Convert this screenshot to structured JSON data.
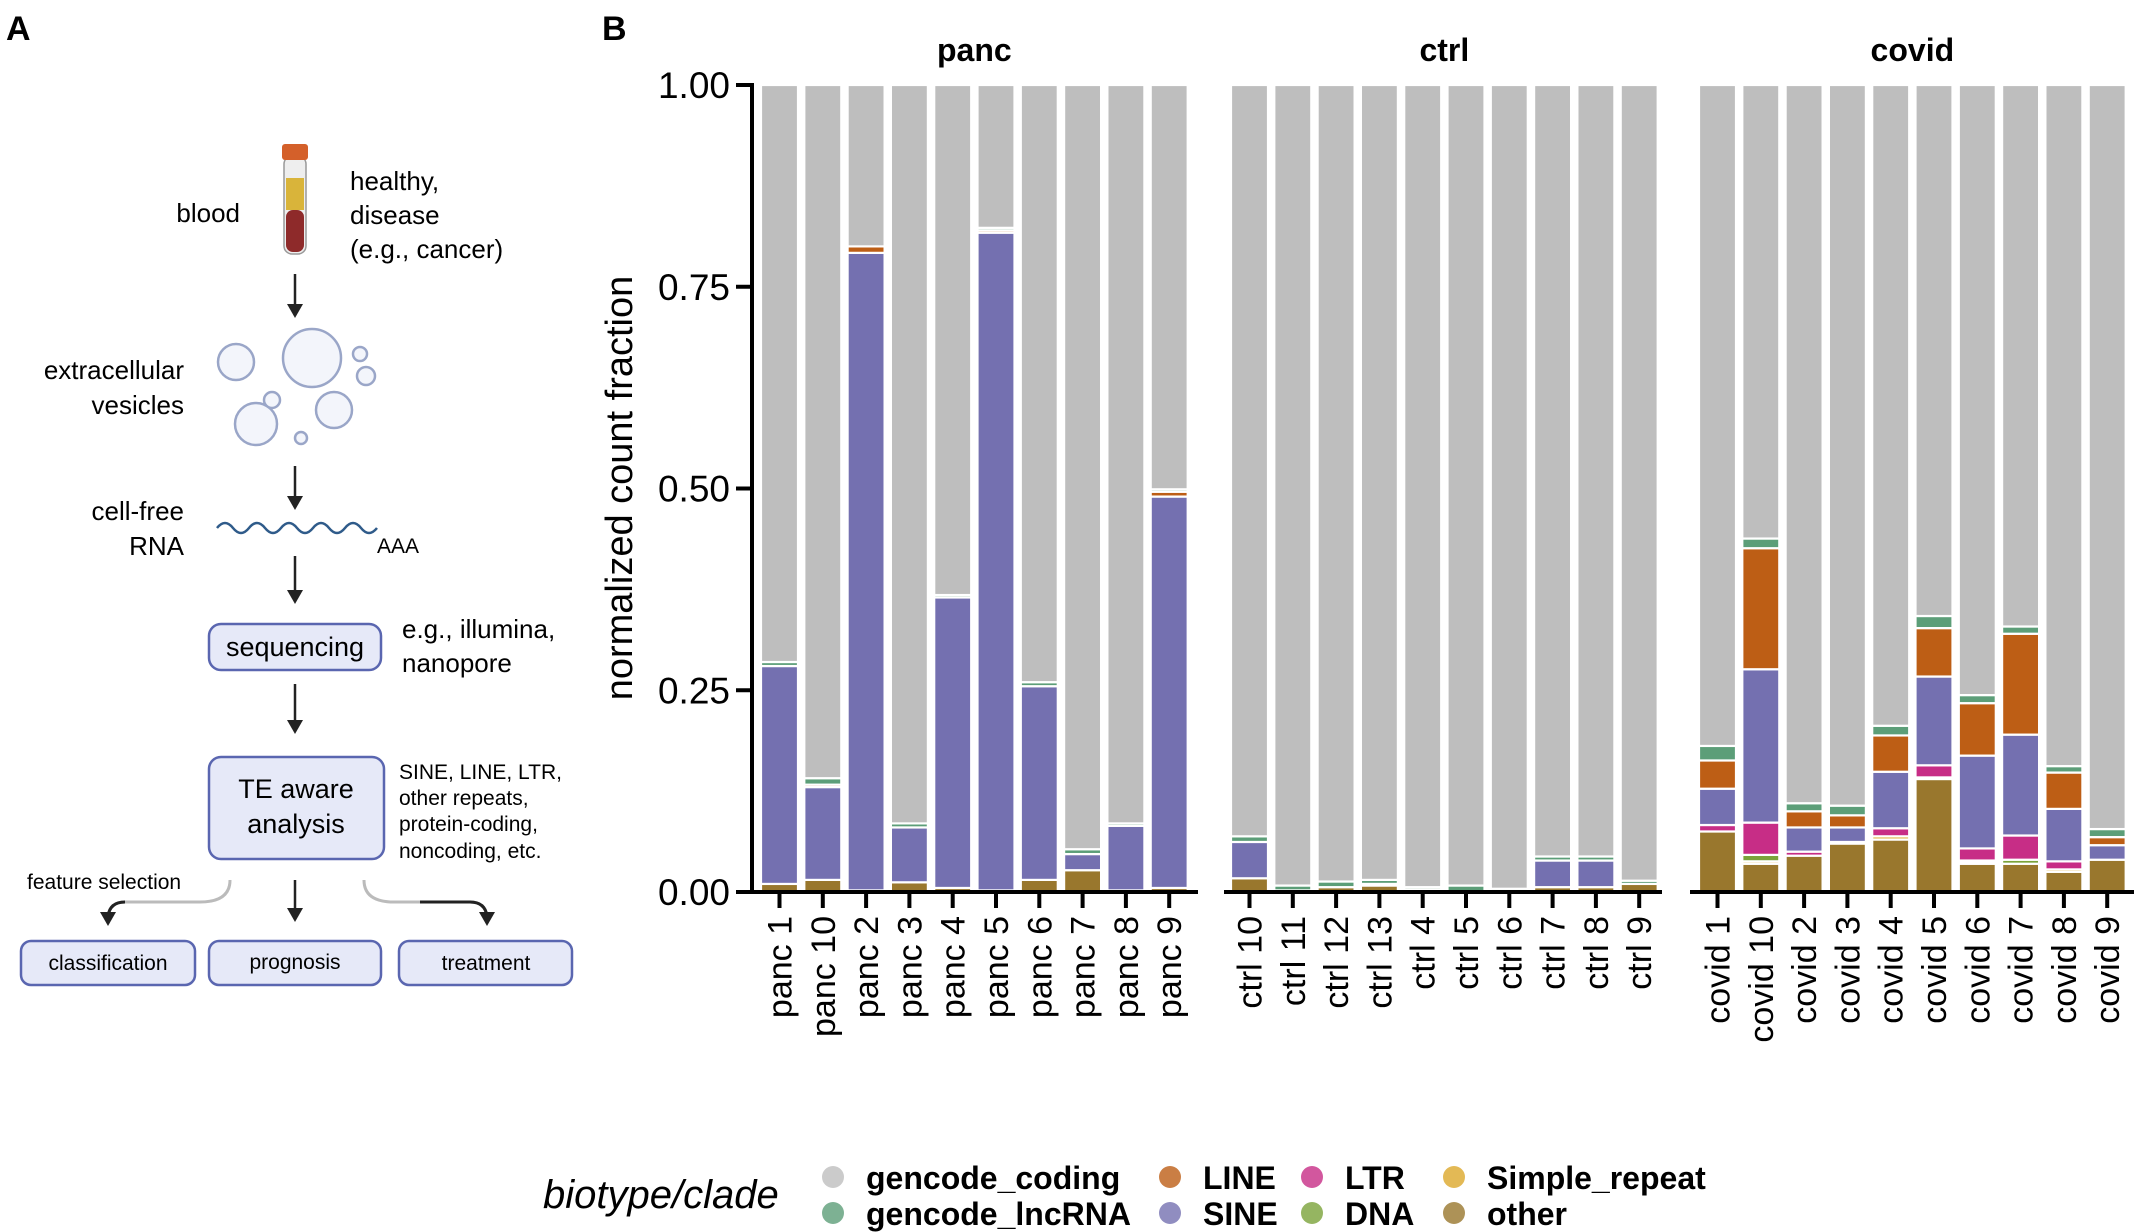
{
  "panel_a": {
    "label": "A",
    "blood": "blood",
    "healthy": [
      "healthy,",
      "disease",
      "(e.g., cancer)"
    ],
    "vesicles": [
      "extracellular",
      "vesicles"
    ],
    "rna": [
      "cell-free",
      "RNA"
    ],
    "polya": "AAA",
    "sequencing": "sequencing",
    "seq_note": [
      "e.g., illumina,",
      "nanopore"
    ],
    "analysis": [
      "TE aware",
      "analysis"
    ],
    "analysis_note": [
      "SINE, LINE, LTR,",
      "other repeats,",
      "protein-coding,",
      "noncoding, etc."
    ],
    "feature_selection": "feature selection",
    "outputs": [
      "classification",
      "prognosis",
      "treatment"
    ]
  },
  "chart_data": {
    "type": "bar",
    "stacked": true,
    "panel_label": "B",
    "ylabel": "normalized count fraction",
    "ylim": [
      0,
      1
    ],
    "yticks": [
      "0.00",
      "0.25",
      "0.50",
      "0.75",
      "1.00"
    ],
    "legend": {
      "title": "biotype/clade",
      "placement": "bottom",
      "entries": [
        "gencode_coding",
        "gencode_lncRNA",
        "LINE",
        "SINE",
        "LTR",
        "DNA",
        "Simple_repeat",
        "other"
      ]
    },
    "colors": {
      "gencode_coding": "#bebebe",
      "gencode_lncRNA": "#5c9e78",
      "LINE": "#bd5e15",
      "SINE": "#7470b0",
      "LTR": "#c72d86",
      "DNA": "#7aa33a",
      "Simple_repeat": "#dca72a",
      "other": "#99772d"
    },
    "stack_order": [
      "other",
      "Simple_repeat",
      "DNA",
      "LTR",
      "SINE",
      "LINE",
      "gencode_lncRNA",
      "gencode_coding"
    ],
    "facets": [
      {
        "name": "panc",
        "categories": [
          "panc 1",
          "panc 10",
          "panc 2",
          "panc 3",
          "panc 4",
          "panc 5",
          "panc 6",
          "panc 7",
          "panc 8",
          "panc 9"
        ],
        "series": [
          {
            "name": "other",
            "values": [
              0.01,
              0.015,
              0.002,
              0.012,
              0.005,
              0.002,
              0.015,
              0.027,
              0.002,
              0.005
            ]
          },
          {
            "name": "Simple_repeat",
            "values": [
              0,
              0,
              0,
              0,
              0,
              0,
              0,
              0,
              0,
              0
            ]
          },
          {
            "name": "DNA",
            "values": [
              0,
              0,
              0,
              0,
              0,
              0,
              0,
              0,
              0,
              0
            ]
          },
          {
            "name": "LTR",
            "values": [
              0,
              0,
              0,
              0,
              0,
              0,
              0,
              0,
              0,
              0
            ]
          },
          {
            "name": "SINE",
            "values": [
              0.27,
              0.115,
              0.79,
              0.068,
              0.36,
              0.815,
              0.24,
              0.02,
              0.08,
              0.485
            ]
          },
          {
            "name": "LINE",
            "values": [
              0,
              0.003,
              0.008,
              0,
              0,
              0.003,
              0,
              0,
              0,
              0.006
            ]
          },
          {
            "name": "gencode_lncRNA",
            "values": [
              0.005,
              0.008,
              0,
              0.005,
              0.003,
              0.003,
              0.005,
              0.006,
              0.003,
              0.003
            ]
          },
          {
            "name": "gencode_coding",
            "values": [
              0.715,
              0.859,
              0.2,
              0.915,
              0.632,
              0.177,
              0.74,
              0.947,
              0.915,
              0.501
            ]
          }
        ]
      },
      {
        "name": "ctrl",
        "categories": [
          "ctrl 10",
          "ctrl 11",
          "ctrl 12",
          "ctrl 13",
          "ctrl 4",
          "ctrl 5",
          "ctrl 6",
          "ctrl 7",
          "ctrl 8",
          "ctrl 9"
        ],
        "series": [
          {
            "name": "other",
            "values": [
              0.017,
              0.002,
              0.006,
              0.008,
              0.003,
              0,
              0,
              0.006,
              0.006,
              0.01
            ]
          },
          {
            "name": "Simple_repeat",
            "values": [
              0,
              0,
              0,
              0,
              0,
              0,
              0,
              0,
              0,
              0
            ]
          },
          {
            "name": "DNA",
            "values": [
              0,
              0,
              0,
              0,
              0,
              0,
              0,
              0,
              0,
              0
            ]
          },
          {
            "name": "LTR",
            "values": [
              0,
              0,
              0,
              0,
              0,
              0,
              0,
              0,
              0,
              0
            ]
          },
          {
            "name": "SINE",
            "values": [
              0.045,
              0,
              0,
              0.002,
              0,
              0,
              0,
              0.033,
              0.033,
              0
            ]
          },
          {
            "name": "LINE",
            "values": [
              0,
              0,
              0,
              0,
              0,
              0,
              0,
              0,
              0,
              0
            ]
          },
          {
            "name": "gencode_lncRNA",
            "values": [
              0.007,
              0.006,
              0.007,
              0.005,
              0.003,
              0.008,
              0.004,
              0.005,
              0.005,
              0.004
            ]
          },
          {
            "name": "gencode_coding",
            "values": [
              0.931,
              0.992,
              0.987,
              0.985,
              0.994,
              0.992,
              0.996,
              0.956,
              0.956,
              0.986
            ]
          }
        ]
      },
      {
        "name": "covid",
        "categories": [
          "covid 1",
          "covid 10",
          "covid 2",
          "covid 3",
          "covid 4",
          "covid 5",
          "covid 6",
          "covid 7",
          "covid 8",
          "covid 9"
        ],
        "series": [
          {
            "name": "other",
            "values": [
              0.075,
              0.035,
              0.045,
              0.06,
              0.065,
              0.14,
              0.035,
              0.035,
              0.025,
              0.04
            ]
          },
          {
            "name": "Simple_repeat",
            "values": [
              0,
              0.003,
              0,
              0,
              0.004,
              0.002,
              0.002,
              0,
              0.003,
              0
            ]
          },
          {
            "name": "DNA",
            "values": [
              0,
              0.008,
              0,
              0,
              0,
              0,
              0.002,
              0.005,
              0,
              0
            ]
          },
          {
            "name": "LTR",
            "values": [
              0.008,
              0.04,
              0.005,
              0.002,
              0.01,
              0.015,
              0.015,
              0.03,
              0.01,
              0
            ]
          },
          {
            "name": "SINE",
            "values": [
              0.045,
              0.19,
              0.03,
              0.018,
              0.07,
              0.11,
              0.115,
              0.125,
              0.065,
              0.018
            ]
          },
          {
            "name": "LINE",
            "values": [
              0.035,
              0.15,
              0.02,
              0.015,
              0.045,
              0.06,
              0.065,
              0.125,
              0.045,
              0.01
            ]
          },
          {
            "name": "gencode_lncRNA",
            "values": [
              0.018,
              0.012,
              0.01,
              0.012,
              0.012,
              0.015,
              0.01,
              0.009,
              0.008,
              0.01
            ]
          },
          {
            "name": "gencode_coding",
            "values": [
              0.819,
              0.562,
              0.89,
              0.893,
              0.794,
              0.658,
              0.756,
              0.671,
              0.844,
              0.922
            ]
          }
        ]
      }
    ]
  }
}
